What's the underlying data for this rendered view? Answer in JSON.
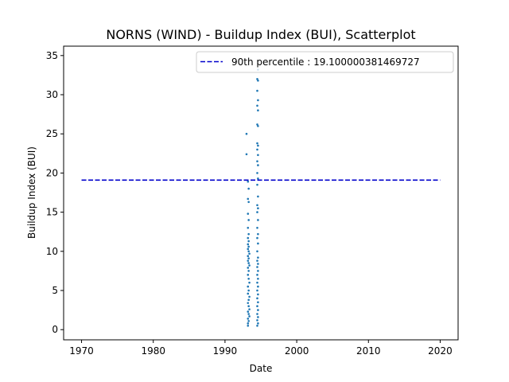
{
  "chart_data": {
    "type": "scatter",
    "title": "NORNS (WIND) - Buildup Index (BUI), Scatterplot",
    "xlabel": "Date",
    "ylabel": "Buildup Index (BUI)",
    "xlim": [
      1967.5,
      2022.5
    ],
    "ylim": [
      -1.3,
      36.2
    ],
    "x_ticks": [
      1970,
      1980,
      1990,
      2000,
      2010,
      2020
    ],
    "y_ticks": [
      0,
      5,
      10,
      15,
      20,
      25,
      30,
      35
    ],
    "legend": {
      "position": "top-right"
    },
    "reference_line": {
      "label": "90th percentile : 19.100000381469727",
      "y": 19.100000381469727,
      "x_start": 1970,
      "x_end": 2020,
      "color": "#0000cc",
      "style": "dashed"
    },
    "series": [
      {
        "color": "#1f77b4",
        "points": [
          [
            1993.2,
            0.5
          ],
          [
            1993.2,
            0.8
          ],
          [
            1993.3,
            1.1
          ],
          [
            1993.2,
            1.4
          ],
          [
            1993.4,
            1.7
          ],
          [
            1993.3,
            2.0
          ],
          [
            1993.2,
            2.3
          ],
          [
            1993.4,
            2.6
          ],
          [
            1993.3,
            3.0
          ],
          [
            1993.2,
            3.4
          ],
          [
            1993.3,
            3.8
          ],
          [
            1993.4,
            4.2
          ],
          [
            1993.2,
            4.6
          ],
          [
            1993.3,
            5.0
          ],
          [
            1993.2,
            5.5
          ],
          [
            1993.4,
            6.0
          ],
          [
            1993.3,
            6.5
          ],
          [
            1993.2,
            7.0
          ],
          [
            1993.3,
            7.5
          ],
          [
            1993.2,
            7.9
          ],
          [
            1993.4,
            8.2
          ],
          [
            1993.3,
            8.5
          ],
          [
            1993.2,
            8.8
          ],
          [
            1993.3,
            9.1
          ],
          [
            1993.2,
            9.4
          ],
          [
            1993.4,
            9.7
          ],
          [
            1993.3,
            10.0
          ],
          [
            1993.2,
            10.3
          ],
          [
            1993.3,
            10.6
          ],
          [
            1993.2,
            10.9
          ],
          [
            1993.3,
            11.3
          ],
          [
            1993.2,
            11.7
          ],
          [
            1993.3,
            12.2
          ],
          [
            1993.2,
            13.0
          ],
          [
            1993.3,
            14.0
          ],
          [
            1993.2,
            14.8
          ],
          [
            1993.3,
            16.3
          ],
          [
            1993.2,
            16.7
          ],
          [
            1993.3,
            18.0
          ],
          [
            1993.2,
            18.9
          ],
          [
            1993.0,
            22.4
          ],
          [
            1993.0,
            25.0
          ],
          [
            1994.5,
            0.5
          ],
          [
            1994.6,
            0.8
          ],
          [
            1994.5,
            1.2
          ],
          [
            1994.6,
            1.6
          ],
          [
            1994.5,
            2.0
          ],
          [
            1994.6,
            2.5
          ],
          [
            1994.5,
            3.0
          ],
          [
            1994.6,
            3.5
          ],
          [
            1994.5,
            4.0
          ],
          [
            1994.6,
            4.5
          ],
          [
            1994.5,
            5.0
          ],
          [
            1994.6,
            5.5
          ],
          [
            1994.5,
            6.0
          ],
          [
            1994.6,
            6.5
          ],
          [
            1994.5,
            7.0
          ],
          [
            1994.6,
            7.5
          ],
          [
            1994.5,
            8.0
          ],
          [
            1994.6,
            8.4
          ],
          [
            1994.5,
            8.8
          ],
          [
            1994.6,
            9.2
          ],
          [
            1994.5,
            10.0
          ],
          [
            1994.6,
            11.0
          ],
          [
            1994.5,
            11.7
          ],
          [
            1994.6,
            12.2
          ],
          [
            1994.5,
            13.0
          ],
          [
            1994.6,
            14.0
          ],
          [
            1994.5,
            15.0
          ],
          [
            1994.6,
            15.5
          ],
          [
            1994.5,
            15.9
          ],
          [
            1994.6,
            17.0
          ],
          [
            1994.5,
            18.5
          ],
          [
            1994.6,
            19.3
          ],
          [
            1994.5,
            20.0
          ],
          [
            1994.6,
            21.0
          ],
          [
            1994.5,
            21.5
          ],
          [
            1994.6,
            22.3
          ],
          [
            1994.5,
            23.0
          ],
          [
            1994.6,
            23.5
          ],
          [
            1994.5,
            23.8
          ],
          [
            1994.6,
            26.0
          ],
          [
            1994.5,
            26.2
          ],
          [
            1994.6,
            28.0
          ],
          [
            1994.5,
            28.6
          ],
          [
            1994.6,
            29.3
          ],
          [
            1994.5,
            30.5
          ],
          [
            1994.6,
            31.8
          ],
          [
            1994.5,
            32.0
          ],
          [
            1994.6,
            33.2
          ]
        ]
      }
    ]
  }
}
